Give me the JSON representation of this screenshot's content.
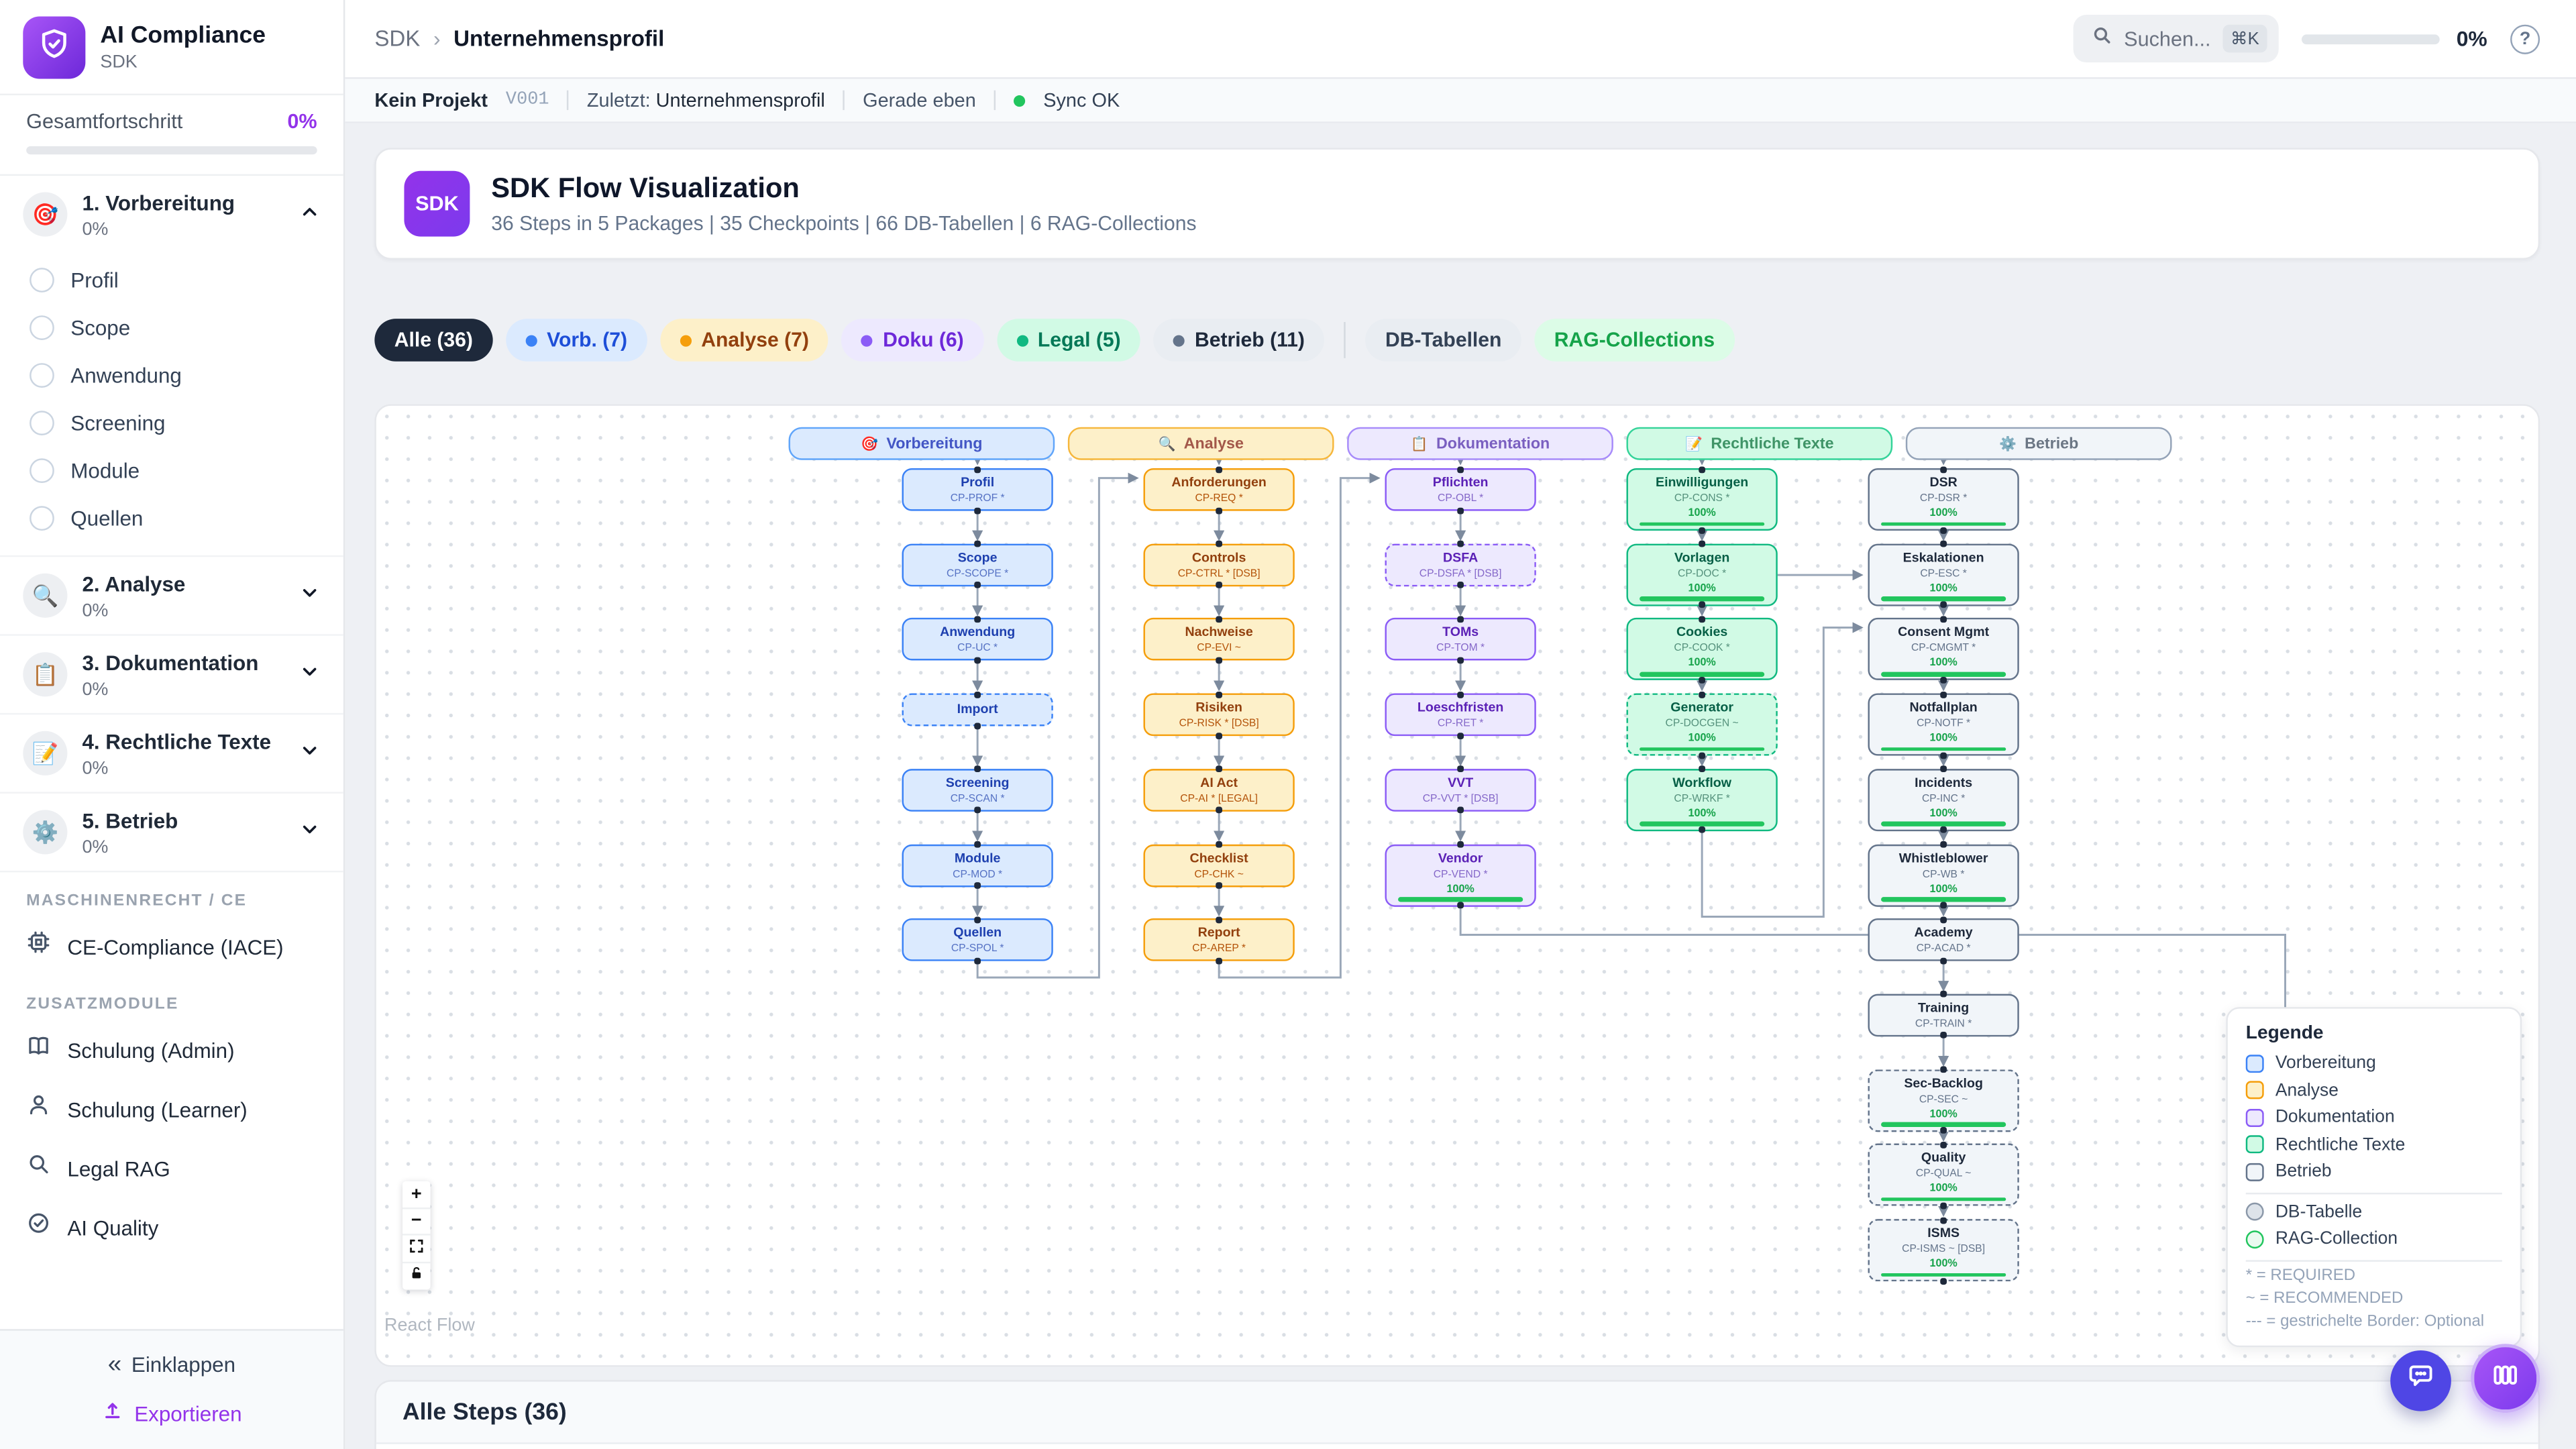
{
  "colors": {
    "accent": "#7c3aed",
    "progress_green": "#22c55e",
    "sync_green": "#22c55e",
    "chip_active_bg": "#1e293b",
    "vorb": "#3b82f6",
    "analyse": "#f59e0b",
    "doku": "#8b5cf6",
    "legal": "#10b981",
    "betrieb": "#64748b"
  },
  "sidebar": {
    "app": {
      "title": "AI Compliance",
      "subtitle": "SDK"
    },
    "progress": {
      "label": "Gesamtfortschritt",
      "value": "0%",
      "percent": 0
    },
    "sections": [
      {
        "title": "1. Vorbereitung",
        "percent": "0%",
        "icon": "🎯",
        "expanded": true,
        "items": [
          "Profil",
          "Scope",
          "Anwendung",
          "Screening",
          "Module",
          "Quellen"
        ]
      },
      {
        "title": "2. Analyse",
        "percent": "0%",
        "icon": "🔍",
        "expanded": false,
        "items": []
      },
      {
        "title": "3. Dokumentation",
        "percent": "0%",
        "icon": "📋",
        "expanded": false,
        "items": []
      },
      {
        "title": "4. Rechtliche Texte",
        "percent": "0%",
        "icon": "📝",
        "expanded": false,
        "items": []
      },
      {
        "title": "5. Betrieb",
        "percent": "0%",
        "icon": "⚙️",
        "expanded": false,
        "items": []
      }
    ],
    "groups": [
      {
        "header": "MASCHINENRECHT / CE",
        "items": [
          {
            "icon": "cpu",
            "label": "CE-Compliance (IACE)"
          }
        ]
      },
      {
        "header": "ZUSATZMODULE",
        "items": [
          {
            "icon": "book",
            "label": "Schulung (Admin)"
          },
          {
            "icon": "user",
            "label": "Schulung (Learner)"
          },
          {
            "icon": "search",
            "label": "Legal RAG"
          },
          {
            "icon": "check-circle",
            "label": "AI Quality"
          }
        ]
      }
    ],
    "footer": {
      "collapse": "Einklappen",
      "export": "Exportieren"
    }
  },
  "header": {
    "breadcrumb": {
      "root": "SDK",
      "current": "Unternehmensprofil"
    },
    "search": {
      "placeholder": "Suchen...",
      "shortcut": "⌘K"
    },
    "progress": "0%"
  },
  "statusbar": {
    "project": "Kein Projekt",
    "version": "V001",
    "last_label": "Zuletzt:",
    "last_value": "Unternehmensprofil",
    "time": "Gerade eben",
    "sync": "Sync OK"
  },
  "hero": {
    "badge": "SDK",
    "title": "SDK Flow Visualization",
    "subtitle": "36 Steps in 5 Packages | 35 Checkpoints | 66 DB-Tabellen | 6 RAG-Collections"
  },
  "filters": {
    "chips": [
      {
        "label": "Alle (36)",
        "type": "all",
        "active": true
      },
      {
        "label": "Vorb. (7)",
        "type": "vorb",
        "dot": "#3b82f6"
      },
      {
        "label": "Analyse (7)",
        "type": "analyse",
        "dot": "#f59e0b"
      },
      {
        "label": "Doku (6)",
        "type": "doku",
        "dot": "#8b5cf6"
      },
      {
        "label": "Legal (5)",
        "type": "legal",
        "dot": "#10b981"
      },
      {
        "label": "Betrieb (11)",
        "type": "betrieb",
        "dot": "#64748b"
      }
    ],
    "extra": [
      {
        "label": "DB-Tabellen",
        "type": "db"
      },
      {
        "label": "RAG-Collections",
        "type": "rag"
      }
    ]
  },
  "flow": {
    "columns": [
      {
        "title": "Vorbereitung",
        "icon": "🎯",
        "type": "vorb",
        "nodes": [
          {
            "label": "Profil",
            "code": "CP-PROF *"
          },
          {
            "label": "Scope",
            "code": "CP-SCOPE *"
          },
          {
            "label": "Anwendung",
            "code": "CP-UC *"
          },
          {
            "label": "Import",
            "code": "",
            "dashed": true
          },
          {
            "label": "Screening",
            "code": "CP-SCAN *"
          },
          {
            "label": "Module",
            "code": "CP-MOD *"
          },
          {
            "label": "Quellen",
            "code": "CP-SPOL *"
          }
        ]
      },
      {
        "title": "Analyse",
        "icon": "🔍",
        "type": "analyse",
        "nodes": [
          {
            "label": "Anforderungen",
            "code": "CP-REQ *"
          },
          {
            "label": "Controls",
            "code": "CP-CTRL * [DSB]"
          },
          {
            "label": "Nachweise",
            "code": "CP-EVI ~"
          },
          {
            "label": "Risiken",
            "code": "CP-RISK * [DSB]"
          },
          {
            "label": "AI Act",
            "code": "CP-AI * [LEGAL]"
          },
          {
            "label": "Checklist",
            "code": "CP-CHK ~"
          },
          {
            "label": "Report",
            "code": "CP-AREP *"
          }
        ]
      },
      {
        "title": "Dokumentation",
        "icon": "📋",
        "type": "doku",
        "nodes": [
          {
            "label": "Pflichten",
            "code": "CP-OBL *"
          },
          {
            "label": "DSFA",
            "code": "CP-DSFA * [DSB]",
            "dashed": true
          },
          {
            "label": "TOMs",
            "code": "CP-TOM *"
          },
          {
            "label": "Loeschfristen",
            "code": "CP-RET *"
          },
          {
            "label": "VVT",
            "code": "CP-VVT * [DSB]"
          },
          {
            "label": "Vendor",
            "code": "CP-VEND *",
            "progress": "100%"
          }
        ]
      },
      {
        "title": "Rechtliche Texte",
        "icon": "📝",
        "type": "legal",
        "nodes": [
          {
            "label": "Einwilligungen",
            "code": "CP-CONS *",
            "progress": "100%"
          },
          {
            "label": "Vorlagen",
            "code": "CP-DOC *",
            "progress": "100%"
          },
          {
            "label": "Cookies",
            "code": "CP-COOK *",
            "progress": "100%"
          },
          {
            "label": "Generator",
            "code": "CP-DOCGEN ~",
            "dashed": true,
            "progress": "100%"
          },
          {
            "label": "Workflow",
            "code": "CP-WRKF *",
            "progress": "100%"
          }
        ]
      },
      {
        "title": "Betrieb",
        "icon": "⚙️",
        "type": "betrieb",
        "nodes": [
          {
            "label": "DSR",
            "code": "CP-DSR *",
            "progress": "100%"
          },
          {
            "label": "Eskalationen",
            "code": "CP-ESC *",
            "progress": "100%"
          },
          {
            "label": "Consent Mgmt",
            "code": "CP-CMGMT *",
            "progress": "100%"
          },
          {
            "label": "Notfallplan",
            "code": "CP-NOTF *",
            "progress": "100%"
          },
          {
            "label": "Incidents",
            "code": "CP-INC *",
            "progress": "100%"
          },
          {
            "label": "Whistleblower",
            "code": "CP-WB *",
            "progress": "100%"
          },
          {
            "label": "Academy",
            "code": "CP-ACAD *"
          },
          {
            "label": "Training",
            "code": "CP-TRAIN *"
          },
          {
            "label": "Sec-Backlog",
            "code": "CP-SEC ~",
            "dashed": true,
            "progress": "100%"
          },
          {
            "label": "Quality",
            "code": "CP-QUAL ~",
            "dashed": true,
            "progress": "100%"
          },
          {
            "label": "ISMS",
            "code": "CP-ISMS ~ [DSB]",
            "dashed": true,
            "progress": "100%"
          }
        ]
      }
    ],
    "legend": {
      "title": "Legende",
      "types": [
        {
          "label": "Vorbereitung",
          "type": "vorb"
        },
        {
          "label": "Analyse",
          "type": "analyse"
        },
        {
          "label": "Dokumentation",
          "type": "doku"
        },
        {
          "label": "Rechtliche Texte",
          "type": "legal"
        },
        {
          "label": "Betrieb",
          "type": "betrieb"
        }
      ],
      "shapes": [
        {
          "label": "DB-Tabelle",
          "kind": "db"
        },
        {
          "label": "RAG-Collection",
          "kind": "rag"
        }
      ],
      "notes": [
        "* = REQUIRED",
        "~ = RECOMMENDED",
        "--- = gestrichelte Border: Optional"
      ]
    },
    "controls": [
      "zoom-in",
      "zoom-out",
      "fit-view",
      "lock"
    ],
    "attribution": "React Flow"
  },
  "bottom": {
    "title": "Alle Steps (36)"
  }
}
